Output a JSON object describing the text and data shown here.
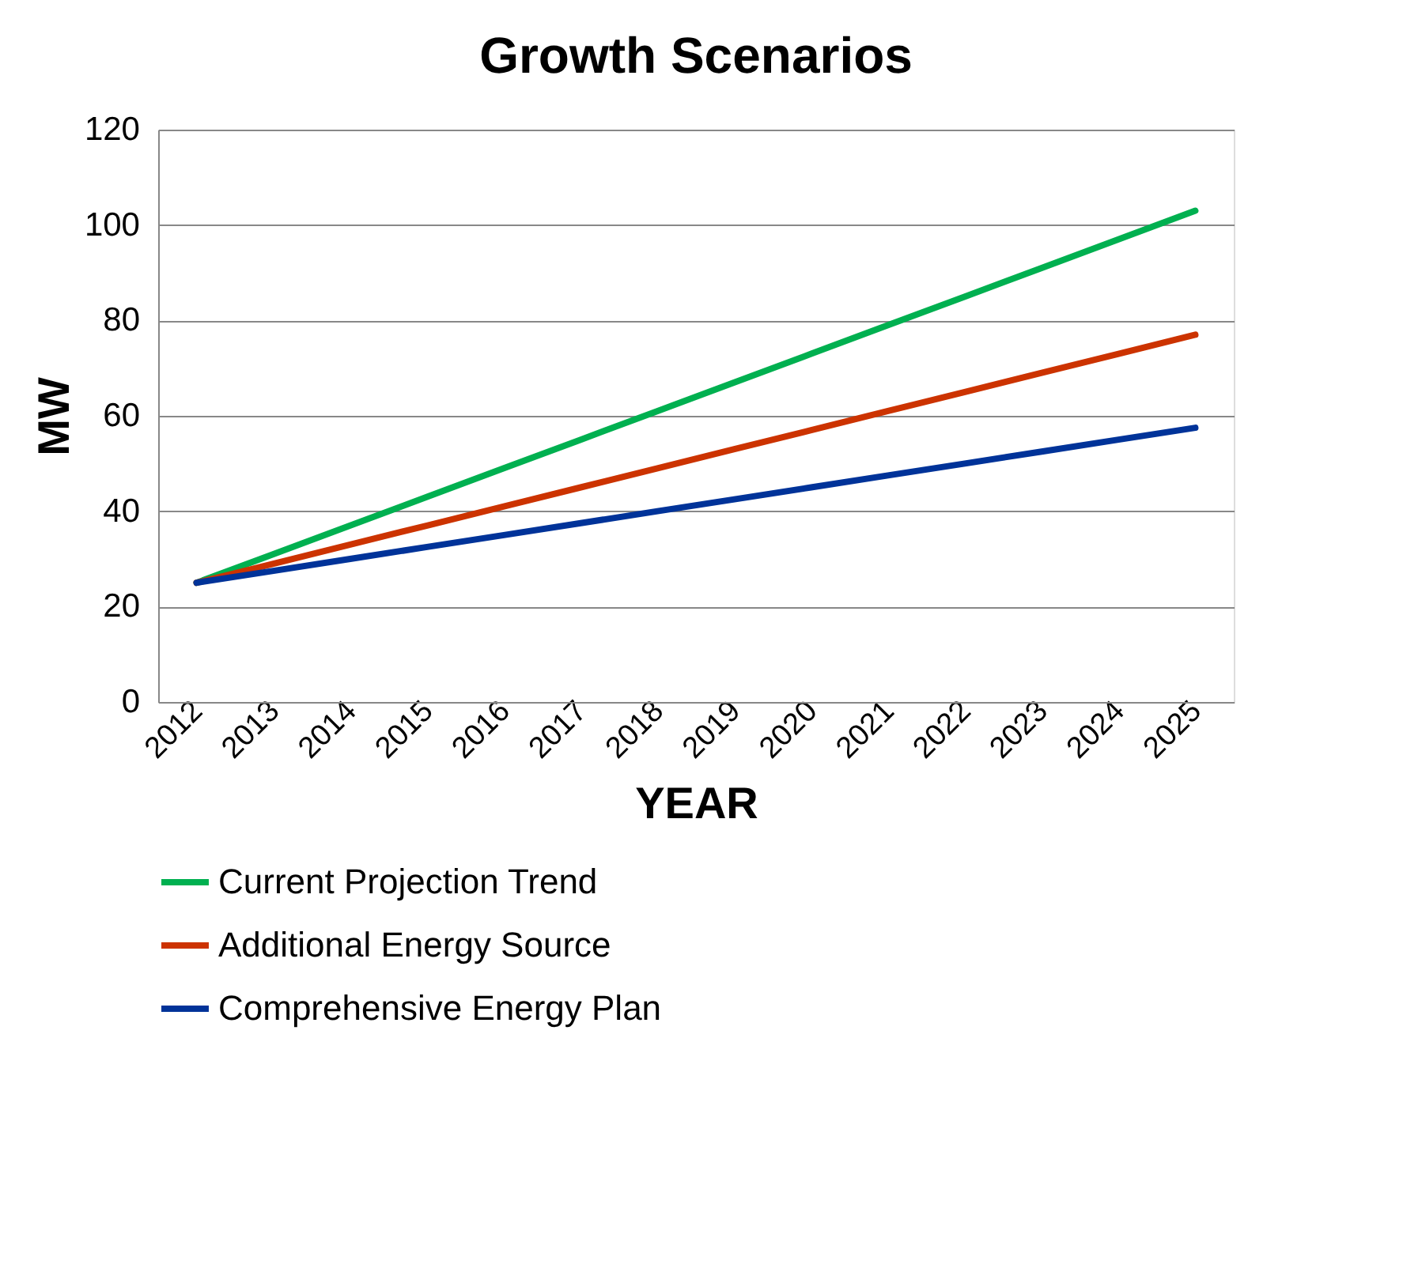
{
  "chart_data": {
    "type": "line",
    "title": "Growth Scenarios",
    "xlabel": "YEAR",
    "ylabel": "MW",
    "categories": [
      "2012",
      "2013",
      "2014",
      "2015",
      "2016",
      "2017",
      "2018",
      "2019",
      "2020",
      "2021",
      "2022",
      "2023",
      "2024",
      "2025"
    ],
    "series": [
      {
        "name": "Current Projection Trend",
        "color": "#00b050",
        "values": [
          25,
          31,
          37,
          43,
          49,
          55,
          61,
          67,
          73,
          79,
          85,
          91,
          97,
          103
        ]
      },
      {
        "name": "Additional Energy Source",
        "color": "#cc3300",
        "values": [
          25,
          29,
          33,
          37,
          41,
          45,
          49,
          53,
          57,
          61,
          65,
          69,
          73,
          77
        ]
      },
      {
        "name": "Comprehensive Energy Plan",
        "color": "#003399",
        "values": [
          25,
          27.5,
          30,
          32.5,
          35,
          37.5,
          40,
          42.5,
          45,
          47.5,
          50,
          52.5,
          55,
          57.5
        ]
      }
    ],
    "ylim": [
      0,
      120
    ],
    "yticks": [
      0,
      20,
      40,
      60,
      80,
      100,
      120
    ],
    "grid": "y",
    "legend": "bottom",
    "marker": "none",
    "line_style": "solid"
  }
}
